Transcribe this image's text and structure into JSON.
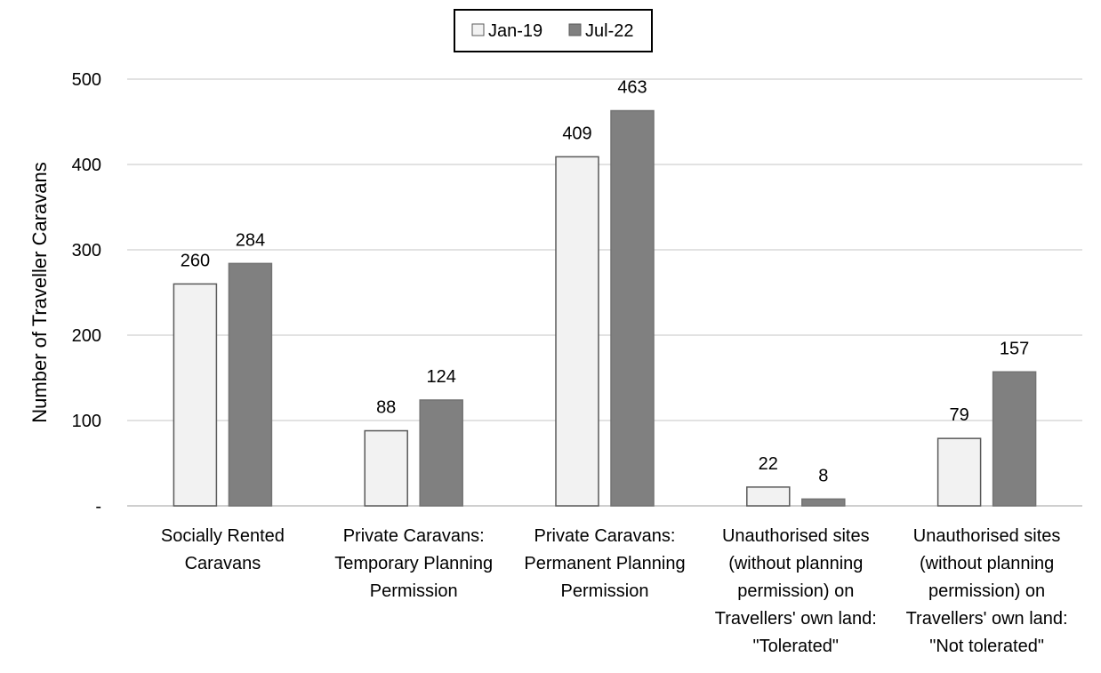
{
  "chart_data": {
    "type": "bar",
    "ylabel": "Number of Traveller Caravans",
    "ylim": [
      0,
      500
    ],
    "yticks": [
      0,
      100,
      200,
      300,
      400,
      500
    ],
    "ytick_labels": [
      "-",
      "100",
      "200",
      "300",
      "400",
      "500"
    ],
    "grid": true,
    "legend_position": "top-center",
    "categories": [
      [
        "Socially Rented",
        "Caravans"
      ],
      [
        "Private Caravans:",
        "Temporary Planning",
        "Permission"
      ],
      [
        "Private Caravans:",
        "Permanent Planning",
        "Permission"
      ],
      [
        "Unauthorised sites",
        "(without planning",
        "permission) on",
        "Travellers' own land:",
        "\"Tolerated\""
      ],
      [
        "Unauthorised sites",
        "(without planning",
        "permission) on",
        "Travellers' own land:",
        "\"Not tolerated\""
      ]
    ],
    "series": [
      {
        "name": "Jan-19",
        "color": "#f2f2f2",
        "values": [
          260,
          88,
          409,
          22,
          79
        ]
      },
      {
        "name": "Jul-22",
        "color": "#808080",
        "values": [
          284,
          124,
          463,
          8,
          157
        ]
      }
    ]
  }
}
